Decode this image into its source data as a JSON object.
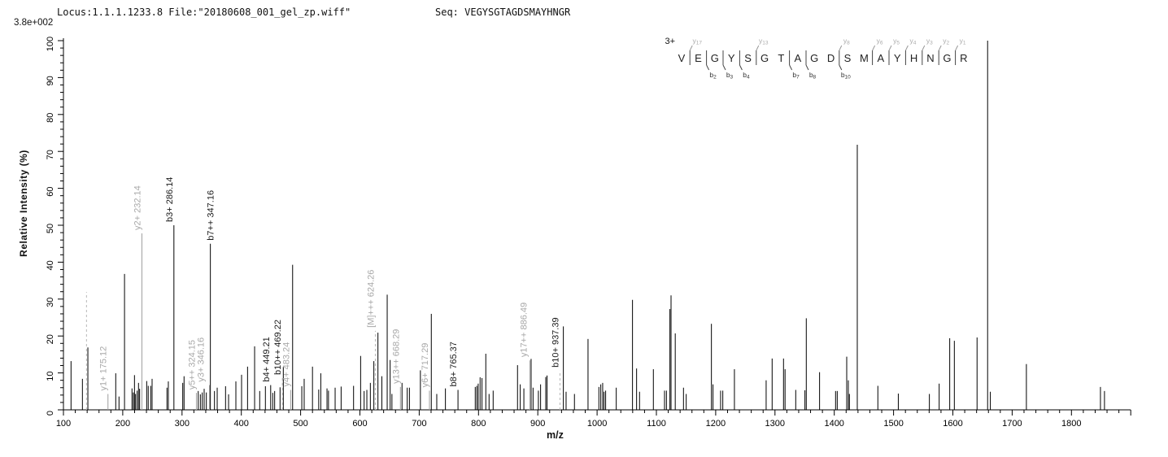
{
  "header": {
    "locus_file": "Locus:1.1.1.1233.8 File:\"20180608_001_gel_zp.wiff\"",
    "seq": "Seq: VEGYSGTAGDSMAYHNGR",
    "intensity_scale": "3.8e+002"
  },
  "axes": {
    "x_label": "m/z",
    "y_label": "Relative  Intensity (%)",
    "x_min": 100,
    "x_max": 1900,
    "x_major_step": 100,
    "x_minor_step": 20,
    "x_last_label": 1800,
    "y_min": 0,
    "y_max": 100,
    "y_major_step": 10,
    "y_minor_step": 2
  },
  "sequence_annotation": {
    "charge": "3+",
    "residues": [
      "V",
      "E",
      "G",
      "Y",
      "S",
      "G",
      "T",
      "A",
      "G",
      "D",
      "S",
      "M",
      "A",
      "Y",
      "H",
      "N",
      "G",
      "R"
    ],
    "cuts": [
      {
        "after": 0,
        "y": "y17",
        "b": null
      },
      {
        "after": 1,
        "y": null,
        "b": "b2"
      },
      {
        "after": 2,
        "y": null,
        "b": "b3"
      },
      {
        "after": 3,
        "y": null,
        "b": "b4"
      },
      {
        "after": 4,
        "y": "y13",
        "b": null
      },
      {
        "after": 6,
        "y": null,
        "b": "b7"
      },
      {
        "after": 7,
        "y": null,
        "b": "b8"
      },
      {
        "after": 9,
        "y": "y8",
        "b": "b10"
      },
      {
        "after": 11,
        "y": "y6",
        "b": null
      },
      {
        "after": 12,
        "y": "y5",
        "b": null
      },
      {
        "after": 13,
        "y": "y4",
        "b": null
      },
      {
        "after": 14,
        "y": "y3",
        "b": null
      },
      {
        "after": 15,
        "y": "y2",
        "b": null
      },
      {
        "after": 16,
        "y": "y1",
        "b": null
      }
    ]
  },
  "chart_data": {
    "type": "bar",
    "subtype": "ms2-centroid-spectrum",
    "title": "",
    "xlabel": "m/z",
    "ylabel": "Relative  Intensity (%)",
    "xlim": [
      100,
      1900
    ],
    "ylim": [
      0,
      100
    ],
    "grid": false,
    "base_peak": {
      "mz": 1658.6,
      "intensity_pct": 100,
      "absolute_intensity": "3.8e+002"
    },
    "precursor_charge": "3+",
    "peaks": [
      [
        112.8,
        13.2
      ],
      [
        132.0,
        8.4
      ],
      [
        141.2,
        16.9
      ],
      [
        188.2,
        9.9
      ],
      [
        193.7,
        3.6
      ],
      [
        203.0,
        36.8
      ],
      [
        215.6,
        5.8
      ],
      [
        217.9,
        4.7
      ],
      [
        219.8,
        9.4
      ],
      [
        221.6,
        4.3
      ],
      [
        224.3,
        5.2
      ],
      [
        226.6,
        7.3
      ],
      [
        228.5,
        5.7
      ],
      [
        240.4,
        7.8
      ],
      [
        243.0,
        6.5
      ],
      [
        247.2,
        6.5
      ],
      [
        249.5,
        8.4
      ],
      [
        274.6,
        6.0
      ],
      [
        276.9,
        7.7
      ],
      [
        301.2,
        7.3
      ],
      [
        303.4,
        9.1
      ],
      [
        327.3,
        5.1
      ],
      [
        330.9,
        4.2
      ],
      [
        334.1,
        4.7
      ],
      [
        337.3,
        5.7
      ],
      [
        341.0,
        4.7
      ],
      [
        354.7,
        5.1
      ],
      [
        359.3,
        6.0
      ],
      [
        373.4,
        6.4
      ],
      [
        378.5,
        4.2
      ],
      [
        390.8,
        7.7
      ],
      [
        400.4,
        9.5
      ],
      [
        410.5,
        11.7
      ],
      [
        422.4,
        17.2
      ],
      [
        431.0,
        5.1
      ],
      [
        440.6,
        6.4
      ],
      [
        453.0,
        4.6
      ],
      [
        456.2,
        5.1
      ],
      [
        465.3,
        6.1
      ],
      [
        470.8,
        11.6
      ],
      [
        486.5,
        39.3
      ],
      [
        502.0,
        6.4
      ],
      [
        506.0,
        8.4
      ],
      [
        520.0,
        11.7
      ],
      [
        530.5,
        5.5
      ],
      [
        534.0,
        9.9
      ],
      [
        544.5,
        5.8
      ],
      [
        547.0,
        5.2
      ],
      [
        558.2,
        6.0
      ],
      [
        568.3,
        6.3
      ],
      [
        589.3,
        6.5
      ],
      [
        601.2,
        14.6
      ],
      [
        607.1,
        5.1
      ],
      [
        611.7,
        5.4
      ],
      [
        617.6,
        7.3
      ],
      [
        623.5,
        13.2
      ],
      [
        630.4,
        20.9
      ],
      [
        637.0,
        9.1
      ],
      [
        646.0,
        31.2
      ],
      [
        651.0,
        13.5
      ],
      [
        654.0,
        4.3
      ],
      [
        671.0,
        7.3
      ],
      [
        679.8,
        6.0
      ],
      [
        683.5,
        6.0
      ],
      [
        702.0,
        10.7
      ],
      [
        720.4,
        26.0
      ],
      [
        729.6,
        4.3
      ],
      [
        744.2,
        5.8
      ],
      [
        794.5,
        6.2
      ],
      [
        797.2,
        6.5
      ],
      [
        799.5,
        7.1
      ],
      [
        802.7,
        8.8
      ],
      [
        805.9,
        8.6
      ],
      [
        812.3,
        15.2
      ],
      [
        817.8,
        4.3
      ],
      [
        824.7,
        5.2
      ],
      [
        865.8,
        12.1
      ],
      [
        870.4,
        6.9
      ],
      [
        876.5,
        5.8
      ],
      [
        888.7,
        13.8
      ],
      [
        892.0,
        6.0
      ],
      [
        901.0,
        5.2
      ],
      [
        904.7,
        6.9
      ],
      [
        913.4,
        8.9
      ],
      [
        915.6,
        9.3
      ],
      [
        943.1,
        22.6
      ],
      [
        947.7,
        4.9
      ],
      [
        961.8,
        4.3
      ],
      [
        984.7,
        19.2
      ],
      [
        1003.0,
        6.2
      ],
      [
        1006.2,
        6.9
      ],
      [
        1009.4,
        7.3
      ],
      [
        1011.7,
        4.9
      ],
      [
        1014.4,
        5.2
      ],
      [
        1032.3,
        6.0
      ],
      [
        1059.7,
        29.8
      ],
      [
        1066.6,
        11.2
      ],
      [
        1071.6,
        4.9
      ],
      [
        1094.9,
        11.0
      ],
      [
        1113.7,
        5.2
      ],
      [
        1116.9,
        5.2
      ],
      [
        1122.8,
        27.3
      ],
      [
        1124.7,
        31.0
      ],
      [
        1131.8,
        20.7
      ],
      [
        1145.7,
        6.0
      ],
      [
        1150.3,
        4.3
      ],
      [
        1192.8,
        23.3
      ],
      [
        1195.5,
        6.9
      ],
      [
        1208.3,
        5.2
      ],
      [
        1212.0,
        5.2
      ],
      [
        1231.6,
        11.0
      ],
      [
        1285.1,
        8.0
      ],
      [
        1295.2,
        13.9
      ],
      [
        1314.4,
        13.9
      ],
      [
        1317.0,
        11.0
      ],
      [
        1335.0,
        5.4
      ],
      [
        1350.5,
        5.3
      ],
      [
        1352.8,
        24.8
      ],
      [
        1375.2,
        10.2
      ],
      [
        1402.2,
        5.1
      ],
      [
        1405.0,
        5.1
      ],
      [
        1421.0,
        14.4
      ],
      [
        1423.7,
        8.0
      ],
      [
        1425.5,
        4.3
      ],
      [
        1438.8,
        71.8
      ],
      [
        1473.5,
        6.5
      ],
      [
        1508.0,
        4.4
      ],
      [
        1560.4,
        4.3
      ],
      [
        1576.9,
        7.1
      ],
      [
        1594.7,
        19.4
      ],
      [
        1602.5,
        18.7
      ],
      [
        1640.8,
        19.6
      ],
      [
        1658.6,
        100.0
      ],
      [
        1663.2,
        4.9
      ],
      [
        1724.0,
        12.4
      ],
      [
        1848.9,
        6.2
      ],
      [
        1855.7,
        5.1
      ]
    ],
    "labeled_peaks": [
      {
        "mz": 175.1,
        "intensity_pct": 4.3,
        "label": "y1+ 175.12",
        "color": "gray",
        "dx": -2
      },
      {
        "mz": 232.3,
        "intensity_pct": 47.8,
        "label": "y2+ 232.14",
        "color": "gray",
        "dx": -2
      },
      {
        "mz": 286.3,
        "intensity_pct": 50.0,
        "label": "b3+ 286.14",
        "color": "black",
        "dx": -2
      },
      {
        "mz": 324.2,
        "intensity_pct": 4.6,
        "label": "y5++ 324.15",
        "color": "gray",
        "dx": -2
      },
      {
        "mz": 346.2,
        "intensity_pct": 6.7,
        "label": "y3+ 346.16",
        "color": "gray",
        "dx": -7
      },
      {
        "mz": 347.8,
        "intensity_pct": 45.0,
        "label": "b7++ 347.16",
        "color": "black",
        "dx": 4
      },
      {
        "mz": 449.5,
        "intensity_pct": 6.7,
        "label": "b4+ 449.21",
        "color": "black",
        "dx": -2
      },
      {
        "mz": 483.2,
        "intensity_pct": 5.4,
        "label": "y4+ 483.24",
        "color": "gray",
        "dx": -2
      },
      {
        "mz": 668.3,
        "intensity_pct": 6.2,
        "label": "y13++ 668.29",
        "color": "gray",
        "dx": -2
      },
      {
        "mz": 717.3,
        "intensity_pct": 5.2,
        "label": "y6+ 717.29",
        "color": "gray",
        "dx": -2
      },
      {
        "mz": 765.4,
        "intensity_pct": 5.4,
        "label": "b8+ 765.37",
        "color": "black",
        "dx": -2
      },
      {
        "mz": 886.5,
        "intensity_pct": 13.4,
        "label": "y17++ 886.49",
        "color": "gray",
        "dx": -4
      }
    ],
    "dashed_markers": [
      {
        "mz": 138.9,
        "top_pct": 31.9,
        "label": null,
        "label_color": null
      },
      {
        "mz": 469.2,
        "top_pct": 8.6,
        "label": "b10++ 469.22",
        "label_color": "black"
      },
      {
        "mz": 626.0,
        "top_pct": 21.4,
        "label": "[M]+++ 624.26",
        "label_color": "gray"
      },
      {
        "mz": 937.4,
        "top_pct": 10.6,
        "label": "b10+ 937.39",
        "label_color": "black"
      }
    ]
  },
  "colors": {
    "peak_black": "#000000",
    "peak_gray": "#9e9e9e",
    "label_black": "#1a1a1a",
    "label_gray": "#a8a8a8",
    "dashed_gray": "#b8b8b8",
    "axis": "#000000",
    "sequence_letter": "#222222",
    "ion_y_label": "#aaaaaa",
    "ion_b_label": "#333333"
  }
}
